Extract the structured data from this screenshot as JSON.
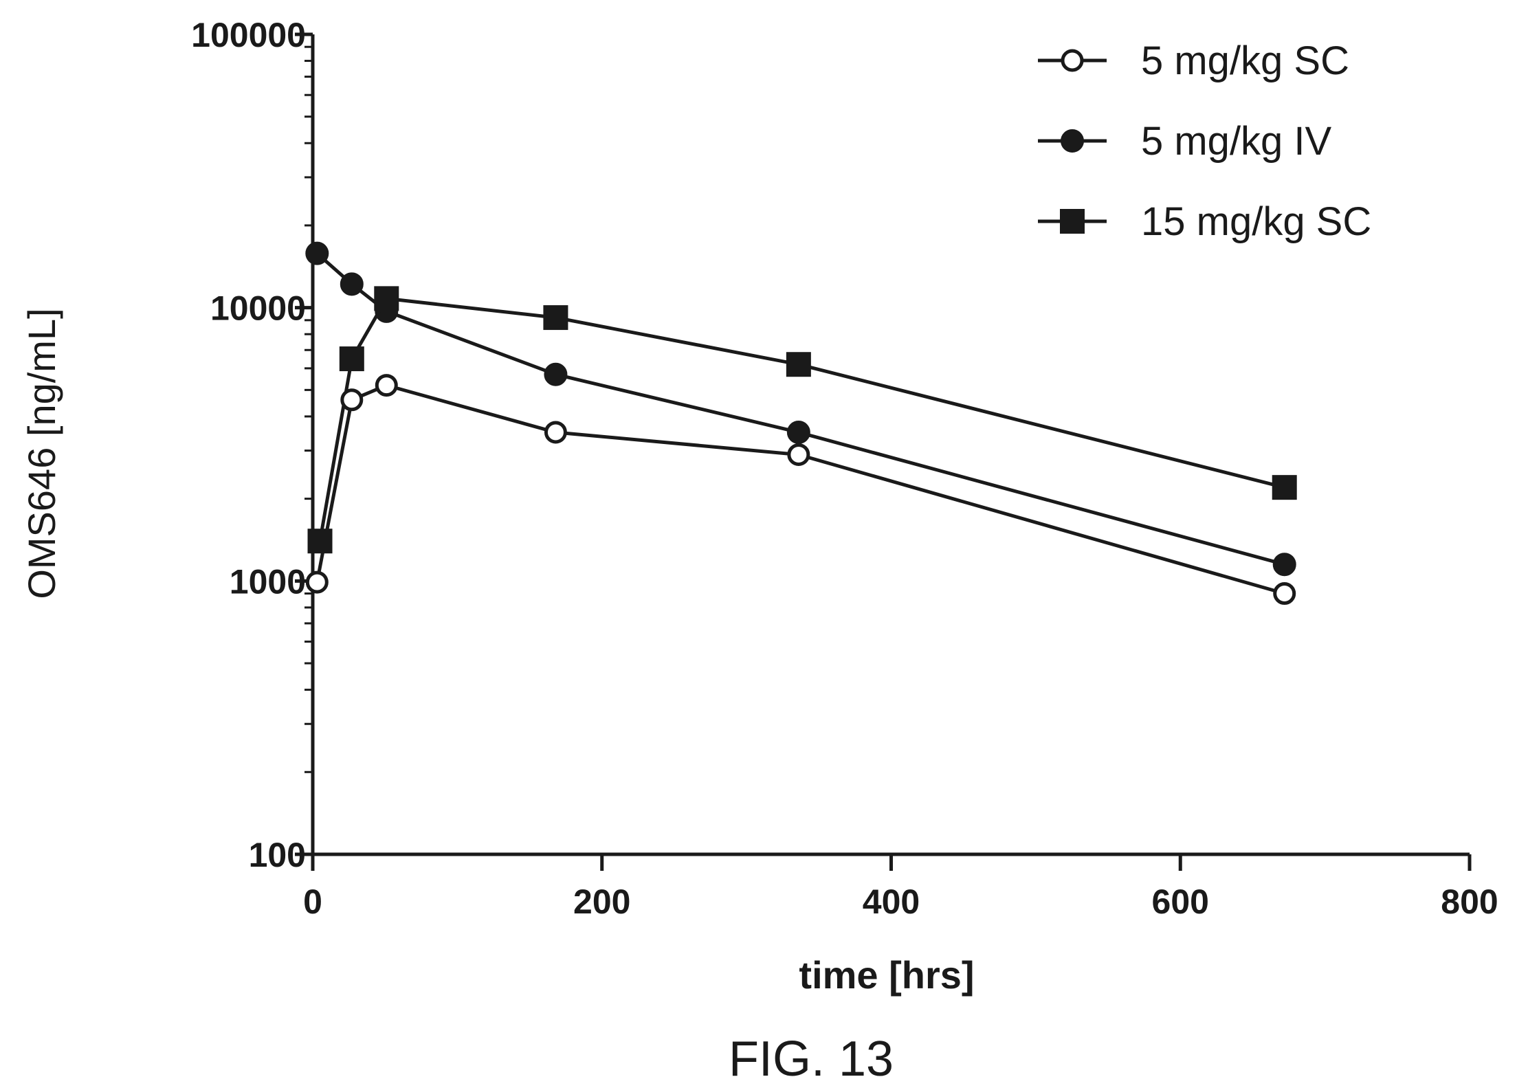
{
  "figure_caption": "FIG. 13",
  "chart_data": {
    "type": "line",
    "xlabel": "time [hrs]",
    "ylabel": "OMS646  [ng/mL]",
    "xlim": [
      0,
      800
    ],
    "ylim": [
      100,
      100000
    ],
    "yscale": "log",
    "x_ticks": [
      0,
      200,
      400,
      600,
      800
    ],
    "y_ticks": [
      100,
      1000,
      10000,
      100000
    ],
    "x_tick_labels": [
      "0",
      "200",
      "400",
      "600",
      "800"
    ],
    "y_tick_labels": [
      "100",
      "1000",
      "10000",
      "100000"
    ],
    "grid": false,
    "legend_position": "top-right",
    "series": [
      {
        "name": "5 mg/kg SC",
        "marker": "open-circle",
        "x": [
          3,
          27,
          51,
          168,
          336,
          672
        ],
        "y": [
          990,
          4600,
          5200,
          3500,
          2900,
          900
        ]
      },
      {
        "name": "5 mg/kg IV",
        "marker": "filled-circle",
        "x": [
          3,
          27,
          51,
          168,
          336,
          672
        ],
        "y": [
          15800,
          12200,
          9700,
          5700,
          3500,
          1150
        ]
      },
      {
        "name": "15 mg/kg SC",
        "marker": "filled-square",
        "x": [
          5,
          27,
          51,
          168,
          336,
          672
        ],
        "y": [
          1400,
          6500,
          10800,
          9200,
          6200,
          2200
        ]
      }
    ]
  }
}
